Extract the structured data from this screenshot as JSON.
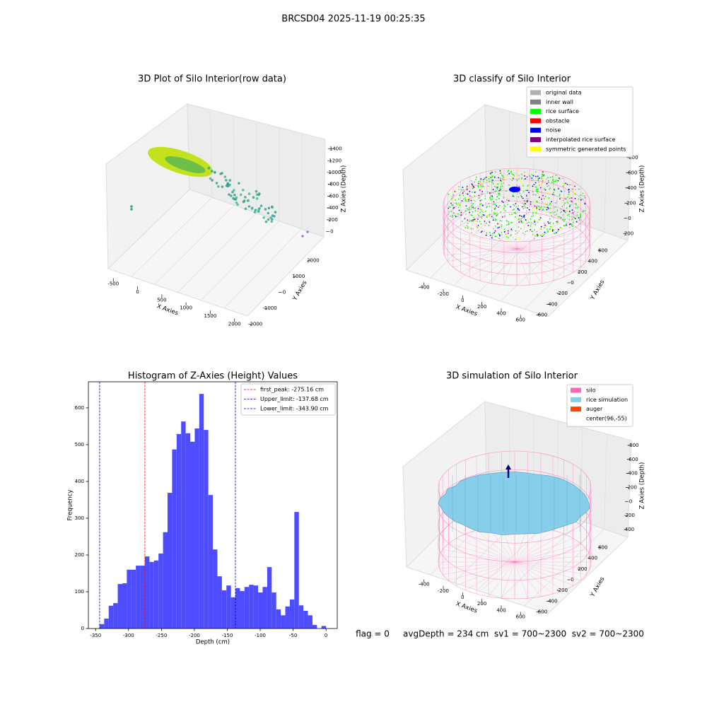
{
  "title": "BRCSD04 2025-11-19 00:25:35",
  "footer": "flag = 0     avgDepth = 234 cm  sv1 = 700~2300  sv2 = 700~2300",
  "chart_data": [
    {
      "type": "scatter3d",
      "title": "3D Plot of Silo Interior(row data)",
      "xlabel": "X Axies",
      "ylabel": "Y Axies",
      "zlabel": "Z Axies (Depth)",
      "xlim": [
        -650,
        2150
      ],
      "xticks": [
        -500,
        0,
        500,
        1000,
        1500,
        2000
      ],
      "ylim": [
        -2200,
        2300
      ],
      "yticks": [
        -2000,
        -1000,
        0,
        1000,
        2000
      ],
      "zlim": [
        -1550,
        100
      ],
      "zticks": [
        0,
        -200,
        -400,
        -600,
        -800,
        -1000,
        -1200,
        -1400
      ]
    },
    {
      "type": "classify3d",
      "title": "3D classify of Silo Interior",
      "xlabel": "X Axies",
      "ylabel": "Y Axies",
      "zlabel": "Z Axies (Depth)",
      "xlim": [
        -500,
        700
      ],
      "xticks": [
        -400,
        -200,
        0,
        200,
        400,
        600
      ],
      "ylim": [
        -700,
        700
      ],
      "yticks": [
        -600,
        -400,
        -200,
        0,
        200,
        400,
        600
      ],
      "zlim": [
        -900,
        300
      ],
      "zticks": [
        200,
        0,
        -200,
        -400,
        -600,
        -800
      ],
      "legend": [
        {
          "name": "original data",
          "color": "#b0b0b0"
        },
        {
          "name": "inner wall",
          "color": "#808080"
        },
        {
          "name": "rice surface",
          "color": "#00ff00"
        },
        {
          "name": "obstacle",
          "color": "#ff0000"
        },
        {
          "name": "noise",
          "color": "#0000ff"
        },
        {
          "name": "interpolated rice surface",
          "color": "#800080"
        },
        {
          "name": "symmetric generated points",
          "color": "#ffff00"
        }
      ]
    },
    {
      "type": "histogram",
      "title": "Histogram of Z-Axies (Height) Values",
      "xlabel": "Depth (cm)",
      "ylabel": "Frequency",
      "color": "#4d4dff",
      "bins": [
        -343.9,
        -337.02,
        -330.14,
        -323.27,
        -316.39,
        -309.51,
        -302.63,
        -295.75,
        -288.88,
        -282.0,
        -275.12,
        -268.24,
        -261.36,
        -254.49,
        -247.61,
        -240.73,
        -233.85,
        -226.97,
        -220.1,
        -213.22,
        -206.34,
        -199.46,
        -192.58,
        -185.71,
        -178.83,
        -171.95,
        -165.07,
        -158.19,
        -151.32,
        -144.44,
        -137.56,
        -130.68,
        -123.8,
        -116.93,
        -110.05,
        -103.17,
        -96.29,
        -89.41,
        -82.54,
        -75.66,
        -68.78,
        -61.9,
        -55.02,
        -48.15,
        -41.27,
        -34.39,
        -27.51,
        -20.63,
        -13.76,
        -6.88,
        0
      ],
      "counts": [
        12,
        27,
        62,
        69,
        121,
        123,
        160,
        160,
        171,
        171,
        196,
        181,
        185,
        204,
        262,
        369,
        487,
        529,
        563,
        531,
        508,
        544,
        638,
        540,
        363,
        215,
        142,
        104,
        117,
        85,
        110,
        102,
        113,
        119,
        117,
        98,
        113,
        167,
        98,
        52,
        36,
        60,
        79,
        317,
        63,
        48,
        36,
        10,
        0,
        7
      ],
      "xlim": [
        -361,
        17
      ],
      "xticks": [
        -350,
        -300,
        -250,
        -200,
        -150,
        -100,
        -50,
        0
      ],
      "ylim": [
        0,
        671
      ],
      "yticks": [
        0,
        100,
        200,
        300,
        400,
        500,
        600
      ],
      "vlines": [
        {
          "value": -275.16,
          "label": "first_peak: -275.16 cm",
          "color": "#ff0000"
        },
        {
          "value": -137.68,
          "label": "Upper_limit: -137.68 cm",
          "color": "#0000aa"
        },
        {
          "value": -343.9,
          "label": "Lower_limit: -343.90 cm",
          "color": "#0000aa"
        }
      ]
    },
    {
      "type": "surface3d",
      "title": "3D simulation of Silo Interior",
      "xlabel": "X Axies",
      "ylabel": "Y Axies",
      "zlabel": "Z Axies (Depth)",
      "xlim": [
        -500,
        700
      ],
      "xticks": [
        -400,
        -200,
        0,
        200,
        400,
        600
      ],
      "ylim": [
        -700,
        700
      ],
      "yticks": [
        -600,
        -400,
        -200,
        0,
        200,
        400,
        600
      ],
      "zlim": [
        -900,
        500
      ],
      "zticks": [
        400,
        200,
        0,
        -200,
        -400,
        -600,
        -800
      ],
      "legend": [
        {
          "name": "silo",
          "color": "#ff69b4"
        },
        {
          "name": "rice simulation",
          "color": "#87ceeb"
        },
        {
          "name": "auger",
          "color": "#ff4500"
        },
        {
          "name": "center(96,-55)",
          "color": "#ffffff"
        }
      ]
    }
  ]
}
